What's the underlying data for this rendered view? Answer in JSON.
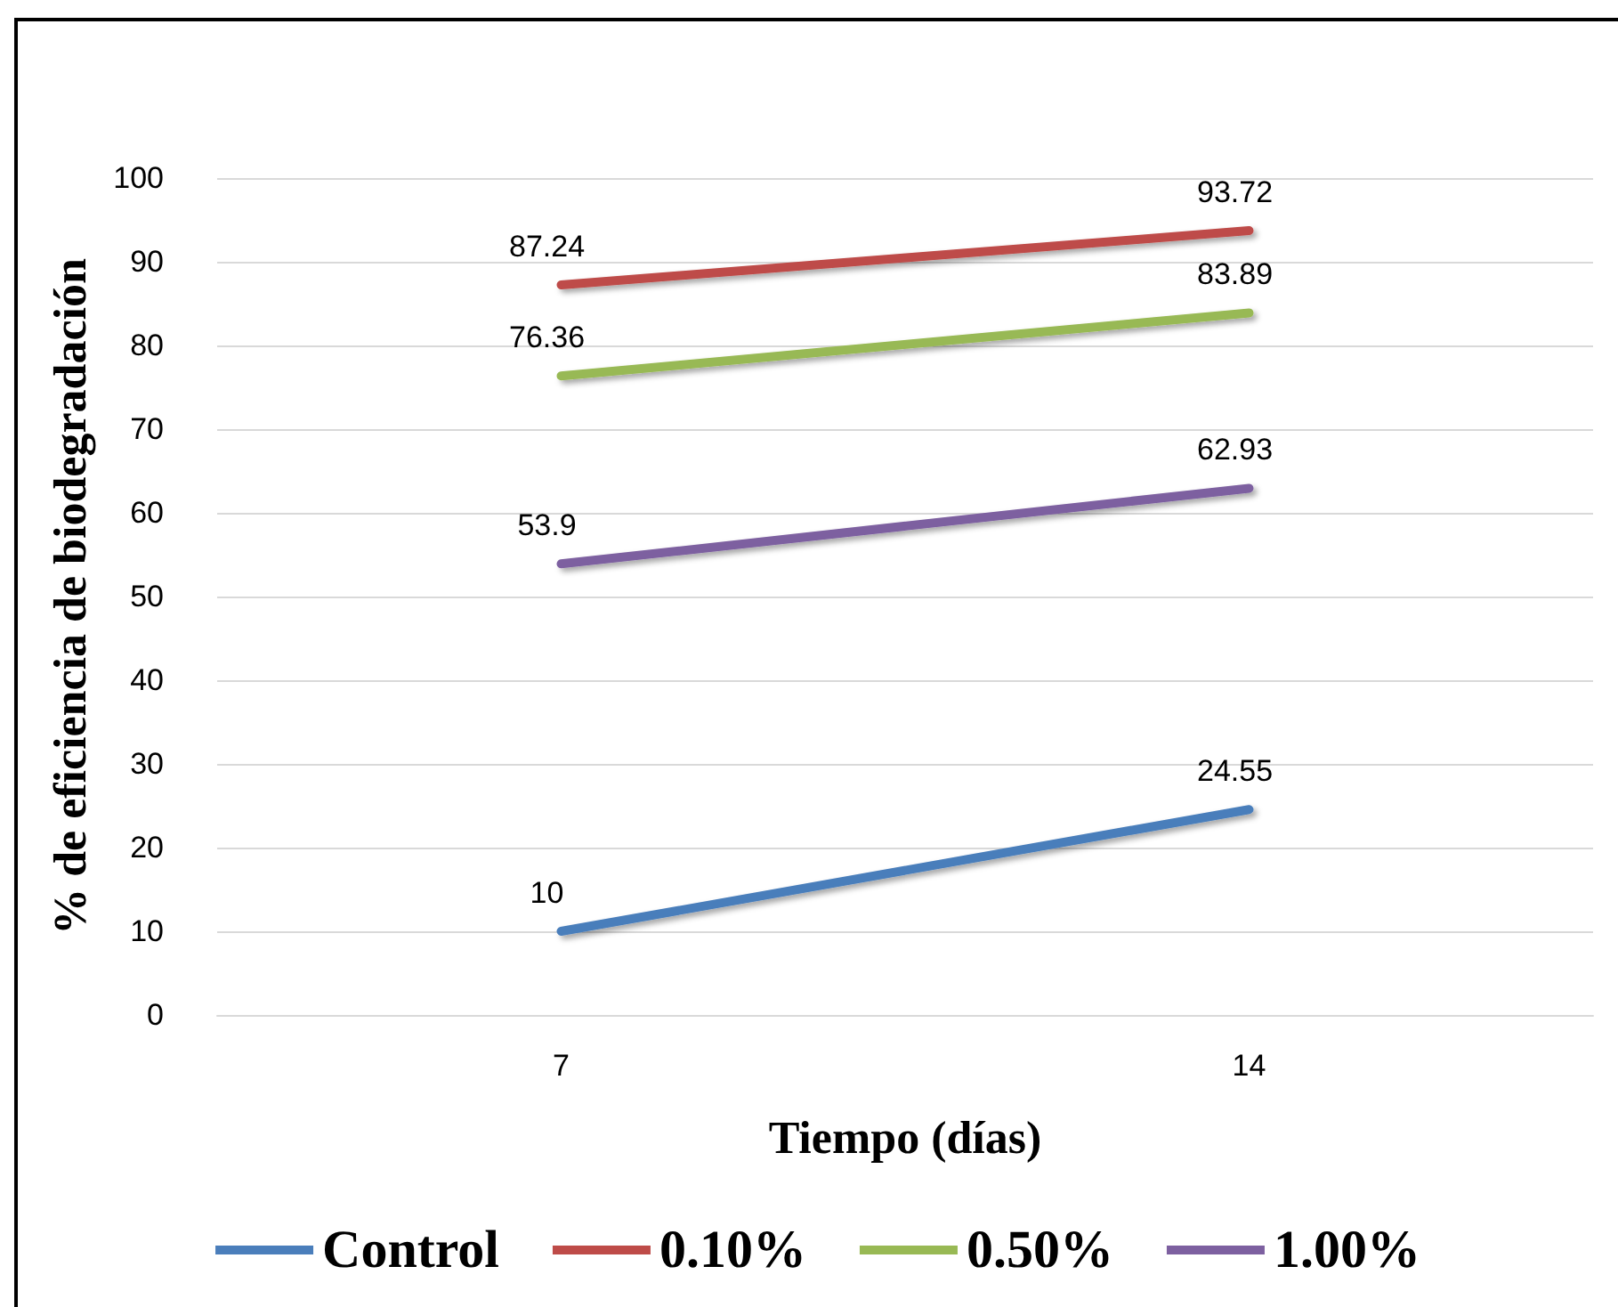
{
  "chart_data": {
    "type": "line",
    "xlabel": "Tiempo (días)",
    "ylabel": "% de eficiencia de biodegradación",
    "categories": [
      "7",
      "14"
    ],
    "series": [
      {
        "name": "Control",
        "color": "#4a7ebb",
        "values": [
          10,
          24.55
        ]
      },
      {
        "name": "0.10%",
        "color": "#be4b48",
        "values": [
          87.24,
          93.72
        ]
      },
      {
        "name": "0.50%",
        "color": "#98b954",
        "values": [
          76.36,
          83.89
        ]
      },
      {
        "name": "1.00%",
        "color": "#7d60a0",
        "values": [
          53.9,
          62.93
        ]
      }
    ],
    "ylim": [
      0,
      100
    ],
    "yticks": [
      0,
      10,
      20,
      30,
      40,
      50,
      60,
      70,
      80,
      90,
      100
    ],
    "grid": "y",
    "legend": "bottom",
    "marker": "none",
    "line_style": "solid",
    "data_labels": true
  }
}
